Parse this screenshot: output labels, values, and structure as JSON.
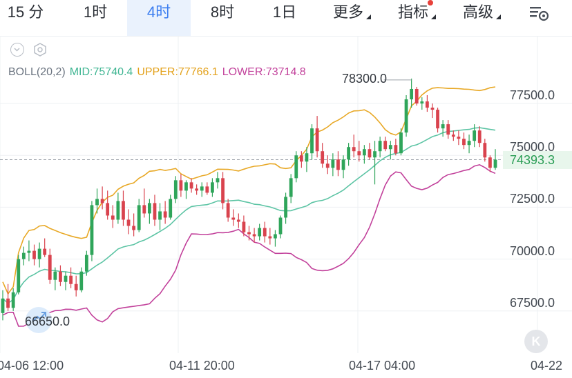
{
  "tabs": [
    {
      "label": "15 分",
      "active": false
    },
    {
      "label": "1时",
      "active": false
    },
    {
      "label": "4时",
      "active": true
    },
    {
      "label": "8时",
      "active": false
    },
    {
      "label": "1日",
      "active": false
    },
    {
      "label": "更多",
      "active": false,
      "dropdown": true
    },
    {
      "label": "指标",
      "active": false,
      "dropdown": true,
      "badge_dot": true
    },
    {
      "label": "高级",
      "active": false,
      "dropdown": true
    }
  ],
  "toolbar": {
    "settings_icon": "chart-settings-icon"
  },
  "indicator": {
    "name": "BOLL(20,2)",
    "mid": "MID:75740.4",
    "upper": "UPPER:77766.1",
    "lower": "LOWER:73714.8"
  },
  "price_axis": {
    "labels": [
      "77500.0",
      "75000.0",
      "72500.0",
      "70000.0",
      "67500.0"
    ],
    "current_price": "74393.3"
  },
  "time_axis": {
    "labels": [
      "04-06 12:00",
      "04-11 20:00",
      "04-17 04:00",
      "04-22"
    ]
  },
  "annotations": {
    "high": "78300.0",
    "low": "66650.0"
  },
  "colors": {
    "up": "#2fa55a",
    "down": "#d9434e",
    "mid": "#5cc4a4",
    "upper": "#e8a825",
    "lower": "#c2419b",
    "accent": "#3b7df0"
  },
  "chart_data": {
    "type": "candlestick",
    "ylim": [
      65000,
      79500
    ],
    "candles": [
      [
        67000,
        68100,
        66650,
        67700
      ],
      [
        67700,
        68400,
        67100,
        67250
      ],
      [
        67250,
        68200,
        67100,
        68000
      ],
      [
        68000,
        69800,
        67900,
        69600
      ],
      [
        69600,
        70200,
        69300,
        69900
      ],
      [
        69900,
        70500,
        69500,
        70000
      ],
      [
        70000,
        70300,
        69300,
        69600
      ],
      [
        69600,
        70400,
        69200,
        70100
      ],
      [
        70100,
        70600,
        69700,
        69800
      ],
      [
        69800,
        70100,
        68400,
        68600
      ],
      [
        68600,
        69200,
        68100,
        69000
      ],
      [
        69000,
        69300,
        68300,
        68500
      ],
      [
        68500,
        69000,
        68100,
        68800
      ],
      [
        68800,
        69200,
        68200,
        68400
      ],
      [
        68400,
        68800,
        67800,
        68100
      ],
      [
        68100,
        69200,
        68000,
        69000
      ],
      [
        69000,
        70000,
        68800,
        69800
      ],
      [
        69800,
        72400,
        69500,
        72200
      ],
      [
        72200,
        73000,
        71800,
        72500
      ],
      [
        72500,
        73100,
        72000,
        72300
      ],
      [
        72300,
        72900,
        71500,
        71700
      ],
      [
        71700,
        72200,
        71100,
        71500
      ],
      [
        71500,
        72800,
        71300,
        72400
      ],
      [
        72400,
        72900,
        71200,
        71500
      ],
      [
        71500,
        72000,
        70800,
        71200
      ],
      [
        71200,
        71800,
        70700,
        71000
      ],
      [
        71000,
        72500,
        70900,
        72200
      ],
      [
        72200,
        73000,
        71600,
        71800
      ],
      [
        71800,
        72500,
        71300,
        72300
      ],
      [
        72300,
        72700,
        71200,
        71500
      ],
      [
        71500,
        72300,
        71000,
        71900
      ],
      [
        71900,
        72400,
        71300,
        71600
      ],
      [
        71600,
        72700,
        71500,
        72500
      ],
      [
        72500,
        73600,
        72300,
        73400
      ],
      [
        73400,
        73700,
        72600,
        72900
      ],
      [
        72900,
        73400,
        72500,
        73300
      ],
      [
        73300,
        73500,
        72800,
        73000
      ],
      [
        73000,
        73200,
        72700,
        72900
      ],
      [
        72900,
        73300,
        72600,
        73100
      ],
      [
        73100,
        73300,
        72700,
        72800
      ],
      [
        72800,
        73500,
        72600,
        73300
      ],
      [
        73300,
        73800,
        73000,
        73500
      ],
      [
        73500,
        73800,
        72000,
        72300
      ],
      [
        72300,
        72500,
        71400,
        71600
      ],
      [
        71600,
        72000,
        71200,
        71500
      ],
      [
        71500,
        71800,
        71100,
        71400
      ],
      [
        71400,
        71700,
        70700,
        70900
      ],
      [
        70900,
        71200,
        70500,
        70800
      ],
      [
        70800,
        71100,
        70400,
        70700
      ],
      [
        70700,
        71300,
        70500,
        71100
      ],
      [
        71100,
        71400,
        70400,
        70700
      ],
      [
        70700,
        71100,
        70300,
        70600
      ],
      [
        70600,
        71000,
        70200,
        70800
      ],
      [
        70800,
        71700,
        70600,
        71600
      ],
      [
        71600,
        72800,
        71300,
        72600
      ],
      [
        72600,
        73700,
        72300,
        73500
      ],
      [
        73500,
        74800,
        73300,
        74600
      ],
      [
        74600,
        74800,
        74000,
        74300
      ],
      [
        74300,
        75000,
        73800,
        74700
      ],
      [
        74700,
        76100,
        74400,
        75900
      ],
      [
        75900,
        76500,
        74500,
        74800
      ],
      [
        74800,
        75200,
        74000,
        74200
      ],
      [
        74200,
        74600,
        73700,
        74000
      ],
      [
        74000,
        74700,
        73600,
        74400
      ],
      [
        74400,
        74800,
        73600,
        73900
      ],
      [
        73900,
        74600,
        73500,
        74400
      ],
      [
        74400,
        75200,
        74100,
        75000
      ],
      [
        75000,
        75600,
        74500,
        74800
      ],
      [
        74800,
        75300,
        74300,
        74600
      ],
      [
        74600,
        75100,
        74200,
        74900
      ],
      [
        74900,
        75200,
        74400,
        74500
      ],
      [
        74500,
        75300,
        73200,
        74800
      ],
      [
        74800,
        75500,
        74500,
        75300
      ],
      [
        75300,
        75500,
        74800,
        74900
      ],
      [
        74900,
        75300,
        74400,
        75100
      ],
      [
        75100,
        75400,
        74600,
        74700
      ],
      [
        74700,
        75900,
        74600,
        75700
      ],
      [
        75700,
        77500,
        75500,
        77300
      ],
      [
        77300,
        78300,
        76900,
        77800
      ],
      [
        77800,
        77900,
        77000,
        77100
      ],
      [
        77100,
        77400,
        76800,
        77200
      ],
      [
        77200,
        77500,
        76700,
        76900
      ],
      [
        76900,
        77100,
        76400,
        76800
      ],
      [
        76800,
        76900,
        75700,
        75900
      ],
      [
        75900,
        76300,
        75500,
        76100
      ],
      [
        76100,
        76300,
        75400,
        75600
      ],
      [
        75600,
        75800,
        75300,
        75500
      ],
      [
        75500,
        75800,
        75100,
        75400
      ],
      [
        75400,
        75700,
        74900,
        75100
      ],
      [
        75100,
        75600,
        74700,
        75300
      ],
      [
        75300,
        76100,
        75000,
        75800
      ],
      [
        75800,
        76000,
        75000,
        75200
      ],
      [
        75200,
        75400,
        74300,
        74500
      ],
      [
        74500,
        74600,
        73800,
        74000
      ],
      [
        74000,
        74900,
        73900,
        74393.3
      ]
    ],
    "bollinger": {
      "mid_last": 75740.4,
      "upper_last": 77766.1,
      "lower_last": 73714.8
    },
    "current_price": 74393.3,
    "high_marker": 78300.0,
    "low_marker": 66650.0
  }
}
